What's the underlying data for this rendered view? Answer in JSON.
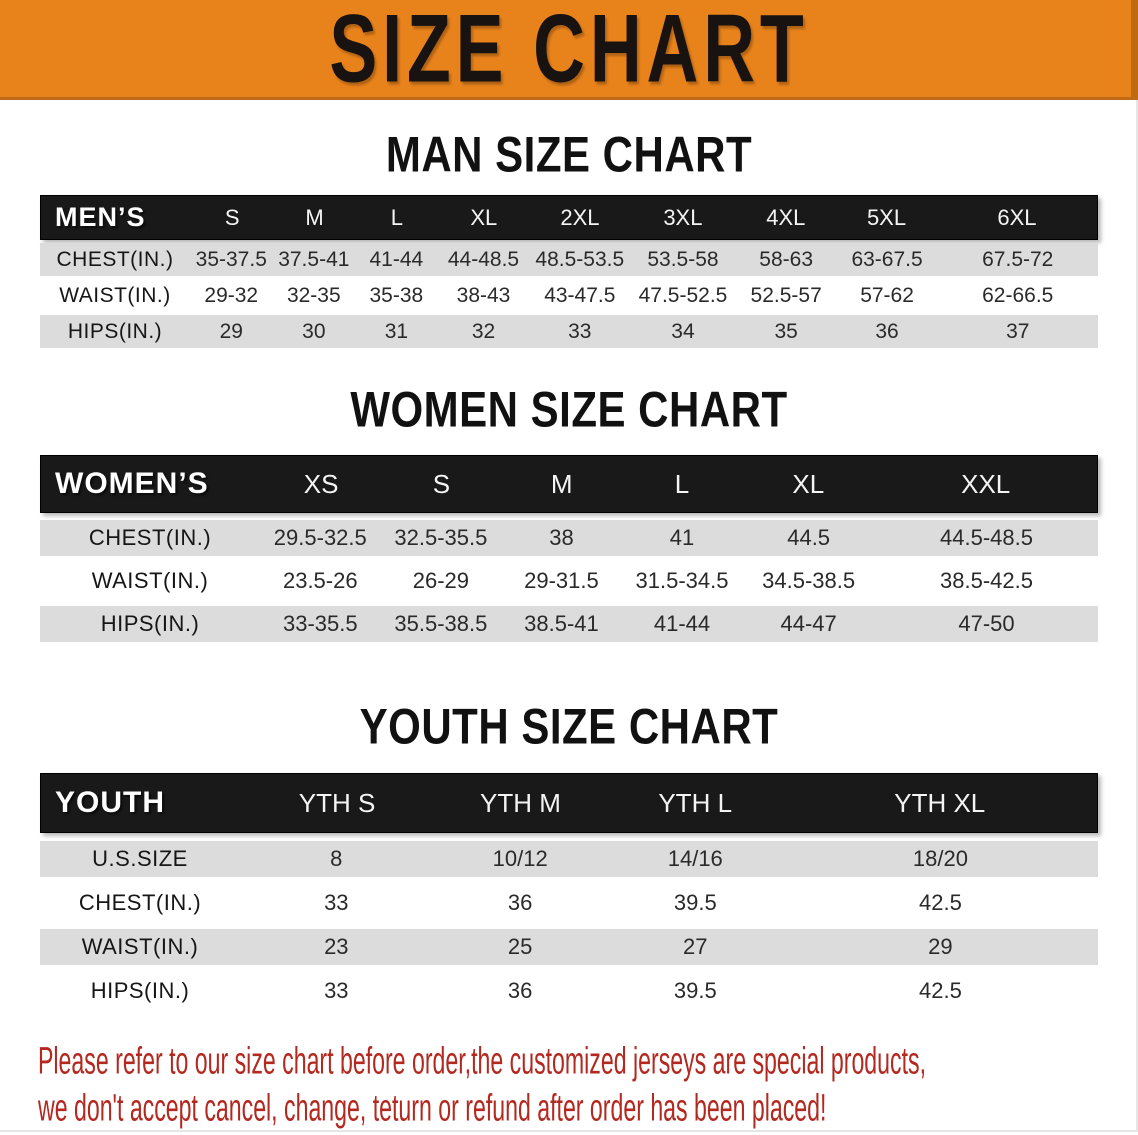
{
  "banner": {
    "title": "SIZE CHART",
    "bg_color": "#E8821B",
    "text_color": "#181210"
  },
  "chart_data": [
    {
      "type": "table",
      "title": "MAN SIZE CHART",
      "header_label": "MEN’S",
      "columns": [
        "S",
        "M",
        "L",
        "XL",
        "2XL",
        "3XL",
        "4XL",
        "5XL",
        "6XL"
      ],
      "rows": [
        {
          "label": "CHEST(IN.)",
          "values": [
            "35-37.5",
            "37.5-41",
            "41-44",
            "44-48.5",
            "48.5-53.5",
            "53.5-58",
            "58-63",
            "63-67.5",
            "67.5-72"
          ]
        },
        {
          "label": "WAIST(IN.)",
          "values": [
            "29-32",
            "32-35",
            "35-38",
            "38-43",
            "43-47.5",
            "47.5-52.5",
            "52.5-57",
            "57-62",
            "62-66.5"
          ]
        },
        {
          "label": "HIPS(IN.)",
          "values": [
            "29",
            "30",
            "31",
            "32",
            "33",
            "34",
            "35",
            "36",
            "37"
          ]
        }
      ]
    },
    {
      "type": "table",
      "title": "WOMEN SIZE CHART",
      "header_label": "WOMEN’S",
      "columns": [
        "XS",
        "S",
        "M",
        "L",
        "XL",
        "XXL"
      ],
      "rows": [
        {
          "label": "CHEST(IN.)",
          "values": [
            "29.5-32.5",
            "32.5-35.5",
            "38",
            "41",
            "44.5",
            "44.5-48.5"
          ]
        },
        {
          "label": "WAIST(IN.)",
          "values": [
            "23.5-26",
            "26-29",
            "29-31.5",
            "31.5-34.5",
            "34.5-38.5",
            "38.5-42.5"
          ]
        },
        {
          "label": "HIPS(IN.)",
          "values": [
            "33-35.5",
            "35.5-38.5",
            "38.5-41",
            "41-44",
            "44-47",
            "47-50"
          ]
        }
      ]
    },
    {
      "type": "table",
      "title": "YOUTH SIZE CHART",
      "header_label": "YOUTH",
      "columns": [
        "YTH S",
        "YTH M",
        "YTH L",
        "YTH XL"
      ],
      "rows": [
        {
          "label": "U.S.SIZE",
          "values": [
            "8",
            "10/12",
            "14/16",
            "18/20"
          ]
        },
        {
          "label": "CHEST(IN.)",
          "values": [
            "33",
            "36",
            "39.5",
            "42.5"
          ]
        },
        {
          "label": "WAIST(IN.)",
          "values": [
            "23",
            "25",
            "27",
            "29"
          ]
        },
        {
          "label": "HIPS(IN.)",
          "values": [
            "33",
            "36",
            "39.5",
            "42.5"
          ]
        }
      ]
    }
  ],
  "disclaimer": {
    "line1": "Please refer to our size chart before order,the customized jerseys are special products,",
    "line2": "we don't accept cancel, change, teturn or refund after order has been placed!",
    "color": "#B3281F"
  },
  "colors": {
    "banner_orange": "#E8821B",
    "table_header_black": "#191919",
    "row_stripe_gray": "#DCDCDC"
  }
}
